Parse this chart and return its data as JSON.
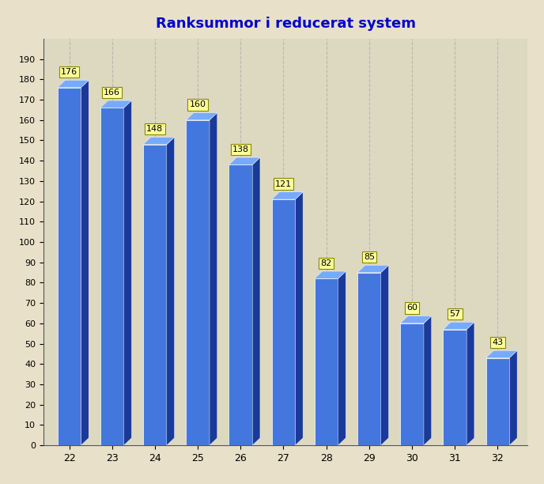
{
  "title": "Ranksummor i reducerat system",
  "categories": [
    22,
    23,
    24,
    25,
    26,
    27,
    28,
    29,
    30,
    31,
    32
  ],
  "values": [
    176,
    166,
    148,
    160,
    138,
    121,
    82,
    85,
    60,
    57,
    43
  ],
  "bar_face_color": "#4477dd",
  "bar_side_color": "#1a3a99",
  "bar_top_color": "#77aaff",
  "background_color": "#e8e0c8",
  "plot_bg_color": "#ddd8c0",
  "title_color": "#0000cc",
  "title_fontsize": 13,
  "ylim": [
    0,
    200
  ],
  "yticks": [
    0,
    10,
    20,
    30,
    40,
    50,
    60,
    70,
    80,
    90,
    100,
    110,
    120,
    130,
    140,
    150,
    160,
    170,
    180,
    190
  ],
  "label_bg_color": "#ffff99",
  "label_border_color": "#888800",
  "grid_color": "#aaaaaa",
  "axis_color": "#555555"
}
